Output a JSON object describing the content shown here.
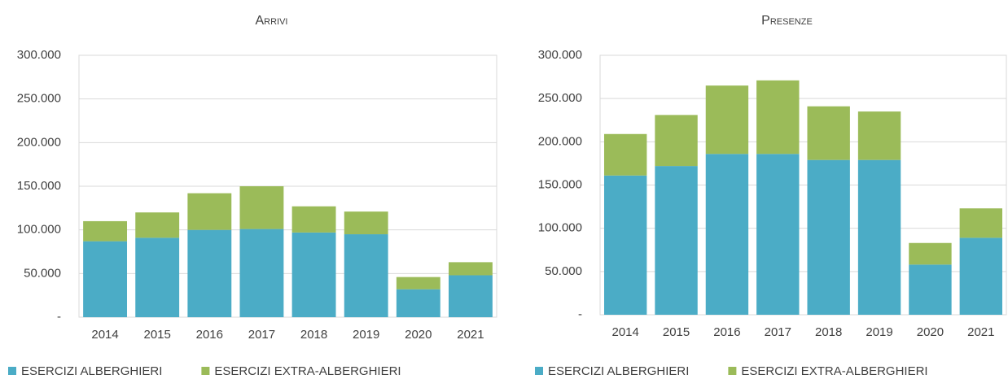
{
  "chart_data": [
    {
      "type": "stacked_bar",
      "title": "Arrivi",
      "categories": [
        "2014",
        "2015",
        "2016",
        "2017",
        "2018",
        "2019",
        "2020",
        "2021"
      ],
      "series": [
        {
          "name": "ESERCIZI ALBERGHIERI",
          "color": "#4bacc6",
          "values": [
            87000,
            91000,
            100000,
            101000,
            97000,
            95000,
            32000,
            48000
          ]
        },
        {
          "name": "ESERCIZI EXTRA-ALBERGHIERI",
          "color": "#9bbb59",
          "values": [
            23000,
            29000,
            42000,
            49000,
            30000,
            26000,
            14000,
            15000
          ]
        }
      ],
      "ylim": [
        0,
        300000
      ],
      "yticks": [
        {
          "value": 0,
          "label": "-"
        },
        {
          "value": 50000,
          "label": "50.000"
        },
        {
          "value": 100000,
          "label": "100.000"
        },
        {
          "value": 150000,
          "label": "150.000"
        },
        {
          "value": 200000,
          "label": "200.000"
        },
        {
          "value": 250000,
          "label": "250.000"
        },
        {
          "value": 300000,
          "label": "300.000"
        }
      ],
      "grid": true,
      "legend": "bottom"
    },
    {
      "type": "stacked_bar",
      "title": "Presenze",
      "categories": [
        "2014",
        "2015",
        "2016",
        "2017",
        "2018",
        "2019",
        "2020",
        "2021"
      ],
      "series": [
        {
          "name": "ESERCIZI ALBERGHIERI",
          "color": "#4bacc6",
          "values": [
            161000,
            172000,
            186000,
            186000,
            179000,
            179000,
            58000,
            89000
          ]
        },
        {
          "name": "ESERCIZI EXTRA-ALBERGHIERI",
          "color": "#9bbb59",
          "values": [
            48000,
            59000,
            79000,
            85000,
            62000,
            56000,
            25000,
            34000
          ]
        }
      ],
      "ylim": [
        0,
        300000
      ],
      "yticks": [
        {
          "value": 0,
          "label": "-"
        },
        {
          "value": 50000,
          "label": "50.000"
        },
        {
          "value": 100000,
          "label": "100.000"
        },
        {
          "value": 150000,
          "label": "150.000"
        },
        {
          "value": 200000,
          "label": "200.000"
        },
        {
          "value": 250000,
          "label": "250.000"
        },
        {
          "value": 300000,
          "label": "300.000"
        }
      ],
      "grid": true,
      "legend": "bottom"
    }
  ]
}
